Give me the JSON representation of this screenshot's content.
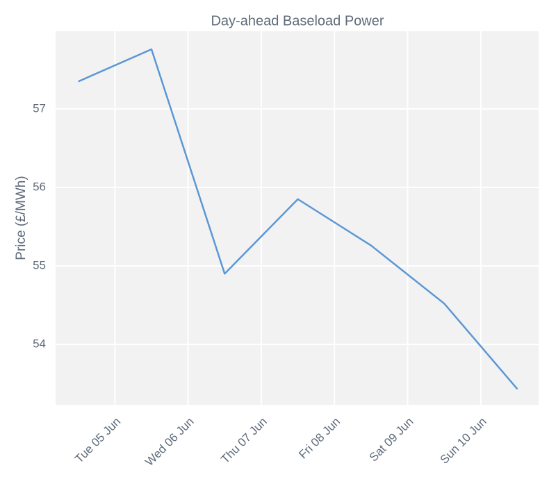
{
  "chart_data": {
    "type": "line",
    "title": "Day-ahead Baseload Power",
    "ylabel": "Price (£/MWh)",
    "x": [
      4.5,
      5.5,
      6.5,
      7.5,
      8.5,
      9.5,
      10.5
    ],
    "series": [
      {
        "name": "Price",
        "color": "#5b97d5",
        "values": [
          57.35,
          57.76,
          54.9,
          55.85,
          55.26,
          54.52,
          53.43
        ]
      }
    ],
    "xlim": [
      4.19,
      10.79
    ],
    "xticks": [
      {
        "value": 5,
        "label": "Tue 05 Jun"
      },
      {
        "value": 6,
        "label": "Wed 06 Jun"
      },
      {
        "value": 7,
        "label": "Thu 07 Jun"
      },
      {
        "value": 8,
        "label": "Fri 08 Jun"
      },
      {
        "value": 9,
        "label": "Sat 09 Jun"
      },
      {
        "value": 10,
        "label": "Sun 10 Jun"
      }
    ],
    "ylim": [
      53.23,
      57.99
    ],
    "yticks": [
      54,
      55,
      56,
      57
    ],
    "grid": true
  }
}
